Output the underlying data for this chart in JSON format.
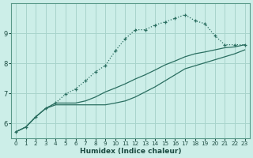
{
  "title": "",
  "xlabel": "Humidex (Indice chaleur)",
  "background_color": "#cceee8",
  "grid_color": "#a8d4cc",
  "line_color": "#2a6e60",
  "xlim": [
    -0.5,
    23.5
  ],
  "ylim": [
    5.5,
    10.0
  ],
  "yticks": [
    6,
    7,
    8,
    9
  ],
  "xticks": [
    0,
    1,
    2,
    3,
    4,
    5,
    6,
    7,
    8,
    9,
    10,
    11,
    12,
    13,
    14,
    15,
    16,
    17,
    18,
    19,
    20,
    21,
    22,
    23
  ],
  "line1_x": [
    0,
    1,
    2,
    3,
    4,
    5,
    6,
    7,
    8,
    9,
    10,
    11,
    12,
    13,
    14,
    15,
    16,
    17,
    18,
    19,
    20,
    21,
    22,
    23
  ],
  "line1_y": [
    5.72,
    5.88,
    6.22,
    6.5,
    6.68,
    6.98,
    7.15,
    7.42,
    7.72,
    7.93,
    8.42,
    8.82,
    9.12,
    9.12,
    9.28,
    9.38,
    9.5,
    9.62,
    9.42,
    9.32,
    8.92,
    8.62,
    8.62,
    8.62
  ],
  "line2_x": [
    0,
    1,
    2,
    3,
    4,
    5,
    6,
    7,
    8,
    9,
    10,
    11,
    12,
    13,
    14,
    15,
    16,
    17,
    18,
    19,
    20,
    21,
    22,
    23
  ],
  "line2_y": [
    5.72,
    5.88,
    6.22,
    6.5,
    6.68,
    6.68,
    6.68,
    6.75,
    6.88,
    7.05,
    7.18,
    7.32,
    7.48,
    7.62,
    7.78,
    7.95,
    8.08,
    8.22,
    8.32,
    8.38,
    8.45,
    8.52,
    8.55,
    8.62
  ],
  "line3_x": [
    0,
    1,
    2,
    3,
    4,
    5,
    6,
    7,
    8,
    9,
    10,
    11,
    12,
    13,
    14,
    15,
    16,
    17,
    18,
    19,
    20,
    21,
    22,
    23
  ],
  "line3_y": [
    5.72,
    5.88,
    6.22,
    6.5,
    6.62,
    6.62,
    6.62,
    6.62,
    6.62,
    6.62,
    6.68,
    6.75,
    6.88,
    7.05,
    7.22,
    7.42,
    7.62,
    7.82,
    7.92,
    8.02,
    8.12,
    8.22,
    8.32,
    8.45
  ]
}
